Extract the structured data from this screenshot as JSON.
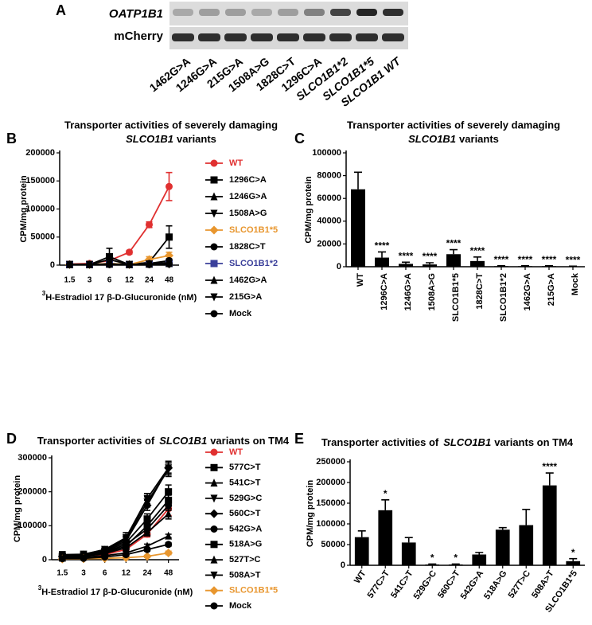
{
  "blot": {
    "panel": "A",
    "rows": [
      "OATP1B1",
      "mCherry"
    ],
    "lanes": [
      "1462G>A",
      "1246G>A",
      "215G>A",
      "1508A>G",
      "1828C>T",
      "1296C>A",
      "SLCO1B1*2",
      "SLCO1B1*5",
      "SLCO1B1 WT"
    ]
  },
  "chart_data": [
    {
      "type": "line",
      "panel": "B",
      "title": [
        "Transporter activities of  severely damaging",
        "SLCO1B1",
        "variants"
      ],
      "ylabel": "CPM/mg protein",
      "xlabel_sup": "3",
      "xlabel": "H-Estradiol 17 β-D-Glucuronide (nM)",
      "categories": [
        "1.5",
        "3",
        "6",
        "12",
        "24",
        "48"
      ],
      "ylim": [
        0,
        200000
      ],
      "yticks": [
        0,
        50000,
        100000,
        150000,
        200000
      ],
      "series": [
        {
          "name": "WT",
          "color": "#e03030",
          "marker": "circle",
          "values": [
            2000,
            3000,
            8000,
            23000,
            72000,
            140000
          ],
          "errors": [
            500,
            500,
            2000,
            3000,
            5000,
            25000
          ]
        },
        {
          "name": "1296C>A",
          "color": "#000000",
          "marker": "square",
          "values": [
            1000,
            1000,
            15000,
            1000,
            5000,
            50000
          ],
          "errors": [
            300,
            300,
            15000,
            500,
            2000,
            20000
          ]
        },
        {
          "name": "1246G>A",
          "color": "#000000",
          "marker": "triangle",
          "values": [
            1000,
            1000,
            2000,
            1000,
            2000,
            5000
          ],
          "errors": [
            300,
            300,
            1000,
            300,
            1000,
            2000
          ]
        },
        {
          "name": "1508A>G",
          "color": "#000000",
          "marker": "triangle-down",
          "values": [
            1000,
            1000,
            3000,
            1000,
            2000,
            4000
          ],
          "errors": [
            300,
            300,
            1000,
            300,
            1000,
            2000
          ]
        },
        {
          "name": "SLCO1B1*5",
          "color": "#e8962e",
          "marker": "diamond",
          "values": [
            1000,
            1000,
            3000,
            1000,
            10000,
            17000
          ],
          "errors": [
            300,
            300,
            1000,
            300,
            5000,
            6000
          ]
        },
        {
          "name": "1828C>T",
          "color": "#000000",
          "marker": "circle",
          "values": [
            1000,
            1000,
            10000,
            1000,
            3000,
            8000
          ],
          "errors": [
            300,
            300,
            5000,
            300,
            1000,
            3000
          ]
        },
        {
          "name": "SLCO1B1*2",
          "color": "#3a3f9a",
          "marker": "square",
          "values": [
            1000,
            1000,
            2000,
            1000,
            2000,
            3000
          ],
          "errors": [
            300,
            300,
            1000,
            300,
            1000,
            1000
          ]
        },
        {
          "name": "1462G>A",
          "color": "#000000",
          "marker": "triangle",
          "values": [
            1000,
            1000,
            2000,
            1000,
            2000,
            3000
          ],
          "errors": [
            300,
            300,
            1000,
            300,
            1000,
            1000
          ]
        },
        {
          "name": "215G>A",
          "color": "#000000",
          "marker": "triangle-down",
          "values": [
            1000,
            1000,
            2000,
            1000,
            2000,
            3000
          ],
          "errors": [
            300,
            300,
            1000,
            300,
            1000,
            1000
          ]
        },
        {
          "name": "Mock",
          "color": "#000000",
          "marker": "circle",
          "values": [
            1000,
            1000,
            1000,
            1000,
            1000,
            2000
          ],
          "errors": [
            300,
            300,
            300,
            300,
            300,
            1000
          ]
        }
      ]
    },
    {
      "type": "bar",
      "panel": "C",
      "title": [
        "Transporter activities of  severely damaging",
        "SLCO1B1",
        "variants"
      ],
      "ylabel": "CPM/mg protein",
      "categories": [
        "WT",
        "1296C>A",
        "1246G>A",
        "1508A>G",
        "SLCO1B1*5",
        "1828C>T",
        "SLCO1B1*2",
        "1462G>A",
        "215G>A",
        "Mock"
      ],
      "values": [
        68000,
        8000,
        2500,
        2000,
        11000,
        5000,
        500,
        500,
        500,
        300
      ],
      "errors": [
        15000,
        5000,
        1500,
        1500,
        4000,
        3500,
        300,
        300,
        300,
        200
      ],
      "significance": [
        null,
        "****",
        "****",
        "****",
        "****",
        "****",
        "****",
        "****",
        "****",
        "****"
      ],
      "color": "#000000",
      "ylim": [
        0,
        100000
      ],
      "yticks": [
        0,
        20000,
        40000,
        60000,
        80000,
        100000
      ]
    },
    {
      "type": "line",
      "panel": "D",
      "title": [
        "Transporter activities of",
        "SLCO1B1",
        "variants on TM4"
      ],
      "ylabel": "CPM/mg protein",
      "xlabel_sup": "3",
      "xlabel": "H-Estradiol 17 β-D-Glucuronide (nM)",
      "categories": [
        "1.5",
        "3",
        "6",
        "12",
        "24",
        "48"
      ],
      "ylim": [
        0,
        300000
      ],
      "yticks": [
        0,
        100000,
        200000,
        300000
      ],
      "series": [
        {
          "name": "WT",
          "color": "#e03030",
          "marker": "circle",
          "values": [
            5000,
            8000,
            15000,
            30000,
            75000,
            150000
          ],
          "errors": [
            2000,
            2000,
            3000,
            5000,
            8000,
            20000
          ]
        },
        {
          "name": "577C>T",
          "color": "#000000",
          "marker": "square",
          "values": [
            10000,
            12000,
            25000,
            50000,
            120000,
            200000
          ],
          "errors": [
            3000,
            3000,
            5000,
            10000,
            15000,
            20000
          ]
        },
        {
          "name": "541C>T",
          "color": "#000000",
          "marker": "triangle",
          "values": [
            5000,
            8000,
            12000,
            20000,
            40000,
            70000
          ],
          "errors": [
            2000,
            2000,
            3000,
            4000,
            6000,
            5000
          ]
        },
        {
          "name": "529G>C",
          "color": "#000000",
          "marker": "triangle-down",
          "values": [
            12000,
            15000,
            30000,
            60000,
            170000,
            265000
          ],
          "errors": [
            4000,
            3000,
            5000,
            10000,
            15000,
            20000
          ]
        },
        {
          "name": "560C>T",
          "color": "#000000",
          "marker": "diamond",
          "values": [
            10000,
            14000,
            28000,
            55000,
            160000,
            270000
          ],
          "errors": [
            3000,
            3000,
            5000,
            10000,
            15000,
            15000
          ]
        },
        {
          "name": "542G>A",
          "color": "#000000",
          "marker": "circle",
          "values": [
            8000,
            12000,
            22000,
            45000,
            90000,
            160000
          ],
          "errors": [
            3000,
            3000,
            4000,
            8000,
            10000,
            15000
          ]
        },
        {
          "name": "518A>G",
          "color": "#000000",
          "marker": "square",
          "values": [
            8000,
            10000,
            20000,
            40000,
            100000,
            175000
          ],
          "errors": [
            3000,
            3000,
            4000,
            8000,
            10000,
            15000
          ]
        },
        {
          "name": "527T>C",
          "color": "#000000",
          "marker": "triangle",
          "values": [
            7000,
            10000,
            18000,
            35000,
            80000,
            135000
          ],
          "errors": [
            3000,
            3000,
            4000,
            6000,
            10000,
            15000
          ]
        },
        {
          "name": "508A>T",
          "color": "#000000",
          "marker": "triangle-down",
          "values": [
            15000,
            16000,
            30000,
            65000,
            180000,
            270000
          ],
          "errors": [
            4000,
            3000,
            5000,
            15000,
            15000,
            20000
          ]
        },
        {
          "name": "SLCO1B1*5",
          "color": "#e8962e",
          "marker": "diamond",
          "values": [
            2000,
            3000,
            4000,
            6000,
            10000,
            20000
          ],
          "errors": [
            1000,
            1000,
            1000,
            2000,
            3000,
            5000
          ]
        },
        {
          "name": "Mock",
          "color": "#000000",
          "marker": "circle",
          "values": [
            3000,
            4000,
            8000,
            15000,
            30000,
            45000
          ],
          "errors": [
            1000,
            1000,
            2000,
            3000,
            5000,
            5000
          ]
        }
      ]
    },
    {
      "type": "bar",
      "panel": "E",
      "title": [
        "Transporter activities of",
        "SLCO1B1",
        "variants on TM4"
      ],
      "ylabel": "CPM/mg protein",
      "categories": [
        "WT",
        "577C>T",
        "541C>T",
        "529G>C",
        "560C>T",
        "542G>A",
        "518A>G",
        "527T>C",
        "508A>T",
        "SLCO1B1*5"
      ],
      "values": [
        68000,
        133000,
        55000,
        2000,
        2000,
        26000,
        86000,
        97000,
        193000,
        10000
      ],
      "errors": [
        15000,
        25000,
        12000,
        1000,
        1000,
        5000,
        5000,
        38000,
        30000,
        6000
      ],
      "significance": [
        null,
        "*",
        null,
        "*",
        "*",
        null,
        null,
        null,
        "****",
        "*"
      ],
      "color": "#000000",
      "ylim": [
        0,
        250000
      ],
      "yticks": [
        0,
        50000,
        100000,
        150000,
        200000,
        250000
      ]
    }
  ]
}
